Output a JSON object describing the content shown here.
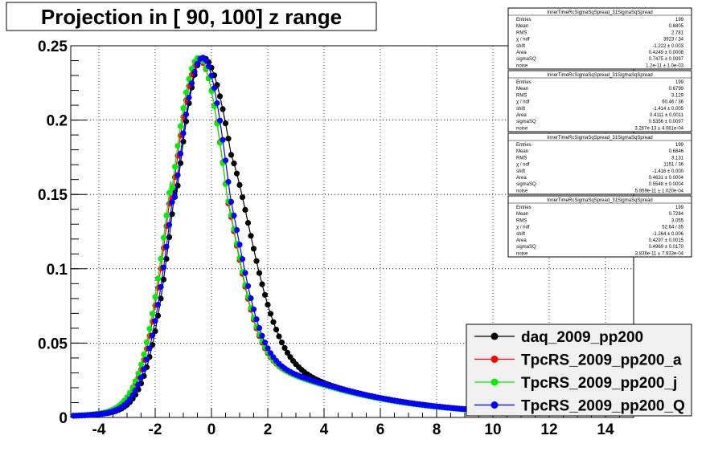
{
  "chart_data": {
    "type": "scatter",
    "title": "Projection in [  90, 100] z range",
    "xlabel": "",
    "ylabel": "",
    "xlim": [
      -5,
      15
    ],
    "ylim": [
      0,
      0.25
    ],
    "grid": true,
    "legend_position": "bottom-right",
    "x_ticks": [
      "-4",
      "-2",
      "0",
      "2",
      "4",
      "6",
      "8",
      "10",
      "12",
      "14"
    ],
    "x_tick_values": [
      -4,
      -2,
      0,
      2,
      4,
      6,
      8,
      10,
      12,
      14
    ],
    "y_ticks": [
      "0",
      "0.05",
      "0.1",
      "0.15",
      "0.2",
      "0.25"
    ],
    "y_tick_values": [
      0,
      0.05,
      0.1,
      0.15,
      0.2,
      0.25
    ],
    "series": [
      {
        "name": "daq_2009_pp200",
        "color": "#000000",
        "params": {
          "mu": -0.3,
          "sl": 0.96,
          "sr": 1.26,
          "amp": 0.242
        }
      },
      {
        "name": "TpcRS_2009_pp200_a",
        "color": "#ff0000",
        "params": {
          "mu": -0.42,
          "sl": 0.99,
          "sr": 1.0,
          "amp": 0.24
        }
      },
      {
        "name": "TpcRS_2009_pp200_j",
        "color": "#00ee00",
        "params": {
          "mu": -0.45,
          "sl": 1.0,
          "sr": 1.02,
          "amp": 0.242
        }
      },
      {
        "name": "TpcRS_2009_pp200_Q",
        "color": "#0000ff",
        "params": {
          "mu": -0.32,
          "sl": 0.99,
          "sr": 1.0,
          "amp": 0.242
        }
      }
    ]
  },
  "stats_boxes": [
    {
      "title": "InnerTimeRcSigmaSqSpread_31SigmaSqSpread",
      "rows": [
        {
          "label": "Entries",
          "value": "199"
        },
        {
          "label": "Mean",
          "value": "0.6805"
        },
        {
          "label": "RMS",
          "value": "2.781"
        },
        {
          "label": "χ  / ndf",
          "value": "3923 / 34"
        },
        {
          "label": "shift",
          "value": "-1.222 ± 0.003"
        },
        {
          "label": "Area",
          "value": "0.4249 ± 0.0008"
        },
        {
          "label": "sigmaSQ",
          "value": "0.7475 ± 0.0097"
        },
        {
          "label": "noise",
          "value": "1.2e-11 ± 1.0e-03"
        }
      ]
    },
    {
      "title": "InnerTimeRcSigmaSqSpread_31SigmaSqSpread",
      "rows": [
        {
          "label": "Entries",
          "value": "199"
        },
        {
          "label": "Mean",
          "value": "0.6799"
        },
        {
          "label": "RMS",
          "value": "3.129"
        },
        {
          "label": "χ  / ndf",
          "value": "60.46 / 36"
        },
        {
          "label": "shift",
          "value": "-1.414 ± 0.005"
        },
        {
          "label": "Area",
          "value": "0.4111 ± 0.0011"
        },
        {
          "label": "sigmaSQ",
          "value": "0.5356 ± 0.0097"
        },
        {
          "label": "noise",
          "value": "3.267e-13 ± 4.081e-04"
        }
      ]
    },
    {
      "title": "InnerTimeRcSigmaSqSpread_31SigmaSqSpread",
      "rows": [
        {
          "label": "Entries",
          "value": "199"
        },
        {
          "label": "Mean",
          "value": "0.6846"
        },
        {
          "label": "RMS",
          "value": "3.131"
        },
        {
          "label": "χ  / ndf",
          "value": "1151 / 36"
        },
        {
          "label": "shift",
          "value": "-1.416 ± 0.000"
        },
        {
          "label": "Area",
          "value": "0.4631 ± 0.0004"
        },
        {
          "label": "sigmaSQ",
          "value": "0.5548 ± 0.0004"
        },
        {
          "label": "noise",
          "value": "5.959e-11 ± 1.020e-04"
        }
      ]
    },
    {
      "title": "InnerTimeRcSigmaSqSpread_31SigmaSqSpread",
      "rows": [
        {
          "label": "Entries",
          "value": "199"
        },
        {
          "label": "Mean",
          "value": "0.7284"
        },
        {
          "label": "RMS",
          "value": "3.055"
        },
        {
          "label": "χ  / ndf",
          "value": "52.64 / 35"
        },
        {
          "label": "shift",
          "value": "-1.264 ± 0.006"
        },
        {
          "label": "Area",
          "value": "0.4297 ± 0.0015"
        },
        {
          "label": "sigmaSQ",
          "value": "0.4969 ± 0.0170"
        },
        {
          "label": "noise",
          "value": "3.836e-11 ± 7.933e-04"
        }
      ]
    }
  ]
}
